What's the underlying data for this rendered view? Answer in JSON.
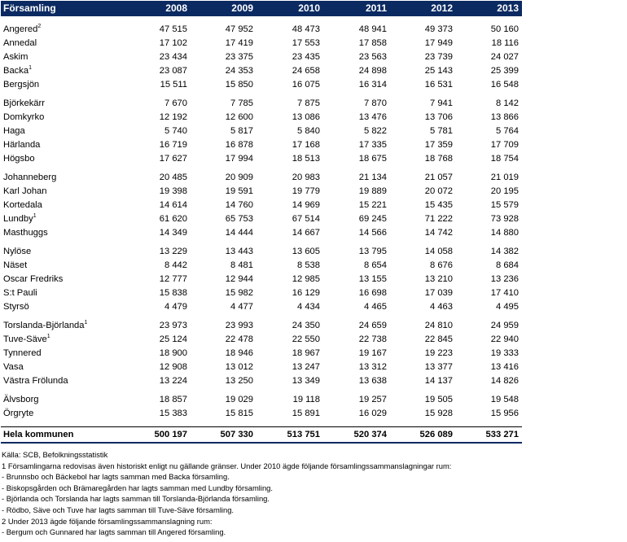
{
  "table": {
    "header": [
      "Församling",
      "2008",
      "2009",
      "2010",
      "2011",
      "2012",
      "2013"
    ],
    "groups": [
      [
        {
          "name": "Angered",
          "sup": "2",
          "values": [
            "47 515",
            "47 952",
            "48 473",
            "48 941",
            "49 373",
            "50 160"
          ]
        },
        {
          "name": "Annedal",
          "sup": "",
          "values": [
            "17 102",
            "17 419",
            "17 553",
            "17 858",
            "17 949",
            "18 116"
          ]
        },
        {
          "name": "Askim",
          "sup": "",
          "values": [
            "23 434",
            "23 375",
            "23 435",
            "23 563",
            "23 739",
            "24 027"
          ]
        },
        {
          "name": "Backa",
          "sup": "1",
          "values": [
            "23 087",
            "24 353",
            "24 658",
            "24 898",
            "25 143",
            "25 399"
          ]
        },
        {
          "name": "Bergsjön",
          "sup": "",
          "values": [
            "15 511",
            "15 850",
            "16 075",
            "16 314",
            "16 531",
            "16 548"
          ]
        }
      ],
      [
        {
          "name": "Björkekärr",
          "sup": "",
          "values": [
            "7 670",
            "7 785",
            "7 875",
            "7 870",
            "7 941",
            "8 142"
          ]
        },
        {
          "name": "Domkyrko",
          "sup": "",
          "values": [
            "12 192",
            "12 600",
            "13 086",
            "13 476",
            "13 706",
            "13 866"
          ]
        },
        {
          "name": "Haga",
          "sup": "",
          "values": [
            "5 740",
            "5 817",
            "5 840",
            "5 822",
            "5 781",
            "5 764"
          ]
        },
        {
          "name": "Härlanda",
          "sup": "",
          "values": [
            "16 719",
            "16 878",
            "17 168",
            "17 335",
            "17 359",
            "17 709"
          ]
        },
        {
          "name": "Högsbo",
          "sup": "",
          "values": [
            "17 627",
            "17 994",
            "18 513",
            "18 675",
            "18 768",
            "18 754"
          ]
        }
      ],
      [
        {
          "name": "Johanneberg",
          "sup": "",
          "values": [
            "20 485",
            "20 909",
            "20 983",
            "21 134",
            "21 057",
            "21 019"
          ]
        },
        {
          "name": "Karl Johan",
          "sup": "",
          "values": [
            "19 398",
            "19 591",
            "19 779",
            "19 889",
            "20 072",
            "20 195"
          ]
        },
        {
          "name": "Kortedala",
          "sup": "",
          "values": [
            "14 614",
            "14 760",
            "14 969",
            "15 221",
            "15 435",
            "15 579"
          ]
        },
        {
          "name": "Lundby",
          "sup": "1",
          "values": [
            "61 620",
            "65 753",
            "67 514",
            "69 245",
            "71 222",
            "73 928"
          ]
        },
        {
          "name": "Masthuggs",
          "sup": "",
          "values": [
            "14 349",
            "14 444",
            "14 667",
            "14 566",
            "14 742",
            "14 880"
          ]
        }
      ],
      [
        {
          "name": "Nylöse",
          "sup": "",
          "values": [
            "13 229",
            "13 443",
            "13 605",
            "13 795",
            "14 058",
            "14 382"
          ]
        },
        {
          "name": "Näset",
          "sup": "",
          "values": [
            "8 442",
            "8 481",
            "8 538",
            "8 654",
            "8 676",
            "8 684"
          ]
        },
        {
          "name": "Oscar Fredriks",
          "sup": "",
          "values": [
            "12 777",
            "12 944",
            "12 985",
            "13 155",
            "13 210",
            "13 236"
          ]
        },
        {
          "name": "S:t Pauli",
          "sup": "",
          "values": [
            "15 838",
            "15 982",
            "16 129",
            "16 698",
            "17 039",
            "17 410"
          ]
        },
        {
          "name": "Styrsö",
          "sup": "",
          "values": [
            "4 479",
            "4 477",
            "4 434",
            "4 465",
            "4 463",
            "4 495"
          ]
        }
      ],
      [
        {
          "name": "Torslanda-Björlanda",
          "sup": "1",
          "values": [
            "23 973",
            "23 993",
            "24 350",
            "24 659",
            "24 810",
            "24 959"
          ]
        },
        {
          "name": "Tuve-Säve",
          "sup": "1",
          "values": [
            "25 124",
            "22 478",
            "22 550",
            "22 738",
            "22 845",
            "22 940"
          ]
        },
        {
          "name": "Tynnered",
          "sup": "",
          "values": [
            "18 900",
            "18 946",
            "18 967",
            "19 167",
            "19 223",
            "19 333"
          ]
        },
        {
          "name": "Vasa",
          "sup": "",
          "values": [
            "12 908",
            "13 012",
            "13 247",
            "13 312",
            "13 377",
            "13 416"
          ]
        },
        {
          "name": "Västra Frölunda",
          "sup": "",
          "values": [
            "13 224",
            "13 250",
            "13 349",
            "13 638",
            "14 137",
            "14 826"
          ]
        }
      ],
      [
        {
          "name": "Älvsborg",
          "sup": "",
          "values": [
            "18 857",
            "19 029",
            "19 118",
            "19 257",
            "19 505",
            "19 548"
          ]
        },
        {
          "name": "Örgryte",
          "sup": "",
          "values": [
            "15 383",
            "15 815",
            "15 891",
            "16 029",
            "15 928",
            "15 956"
          ]
        }
      ]
    ],
    "total": {
      "name": "Hela kommunen",
      "values": [
        "500 197",
        "507 330",
        "513 751",
        "520 374",
        "526 089",
        "533 271"
      ]
    }
  },
  "notes": [
    "Källa:  SCB, Befolkningsstatistik",
    "1 Församlingarna redovisas även historiskt enligt nu gällande gränser. Under 2010 ägde följande församlingssammanslagningar rum:",
    "- Brunnsbo och Bäckebol har lagts samman med Backa församling.",
    "- Biskopsgården och Brämaregården har lagts samman med Lundby församling.",
    "- Björlanda och Torslanda har lagts samman till Torslanda-Björlanda församling.",
    "- Rödbo, Säve och Tuve har lagts samman till Tuve-Säve församling.",
    "2  Under 2013 ägde följande församlingssammanslagning rum:",
    "- Bergum och Gunnared har lagts samman till Angered församling."
  ]
}
